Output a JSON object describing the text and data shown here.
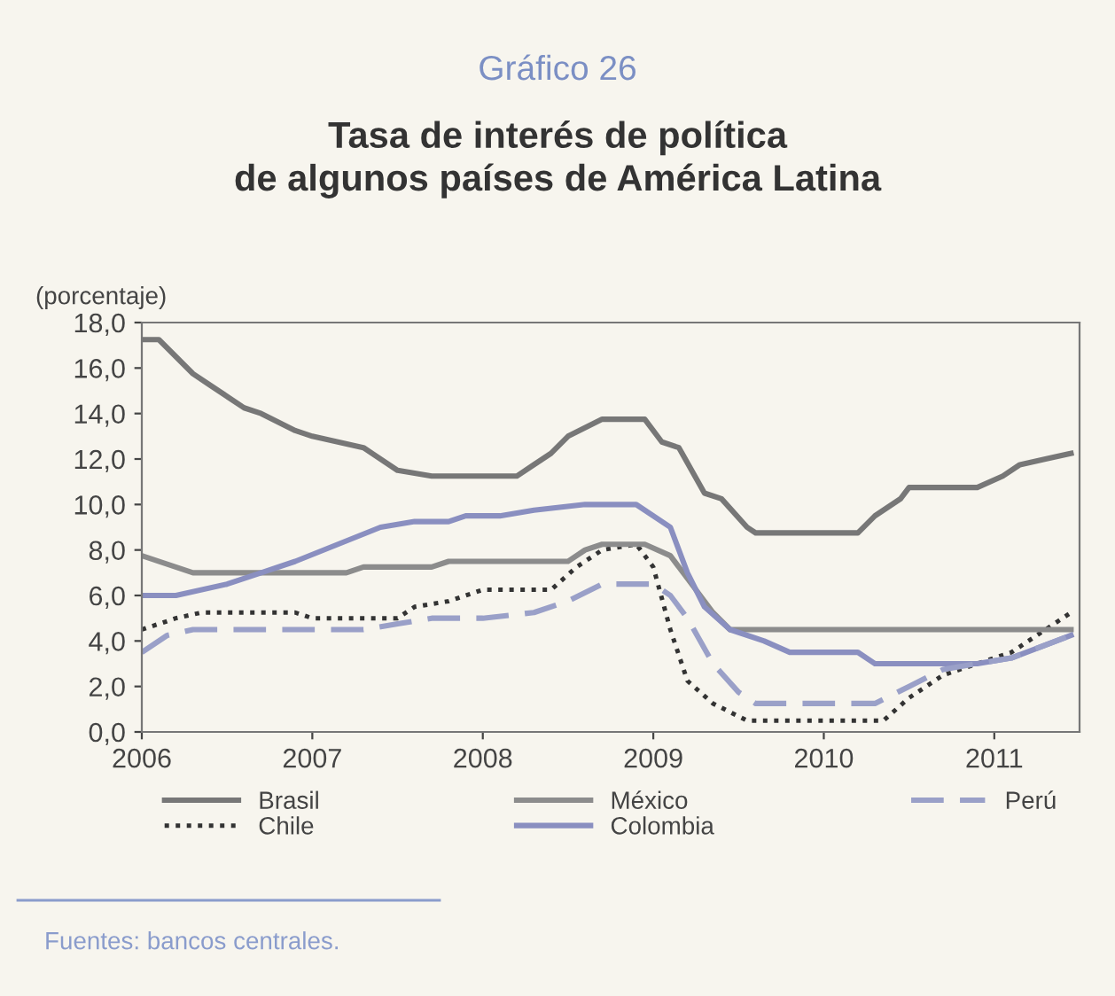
{
  "chart_data": {
    "type": "line",
    "title": "Gráfico 26",
    "subtitle": "Tasa de interés de política\nde algunos países de América Latina",
    "ylabel": "(porcentaje)",
    "annotations": [
      "Fuentes: bancos centrales."
    ],
    "xlim": [
      2006,
      2011.5
    ],
    "xticks": [
      2006,
      2007,
      2008,
      2009,
      2010,
      2011
    ],
    "ylim": [
      0,
      18
    ],
    "yticks": [
      {
        "value": 0,
        "label": "0,0"
      },
      {
        "value": 2,
        "label": "2,0"
      },
      {
        "value": 4,
        "label": "4,0"
      },
      {
        "value": 6,
        "label": "6,0"
      },
      {
        "value": 8,
        "label": "8,0"
      },
      {
        "value": 10,
        "label": "10,0"
      },
      {
        "value": 12,
        "label": "12,0"
      },
      {
        "value": 14,
        "label": "14,0"
      },
      {
        "value": 16,
        "label": "16,0"
      },
      {
        "value": 18,
        "label": "18,0"
      }
    ],
    "grid": false,
    "legend": "bottom",
    "marker": "none",
    "series": [
      {
        "name": "Brasil",
        "color": "#777777",
        "line_style": "solid",
        "x": [
          2006,
          2006.1,
          2006.3,
          2006.4,
          2006.6,
          2006.7,
          2006.9,
          2007.0,
          2007.3,
          2007.5,
          2007.7,
          2008.2,
          2008.3,
          2008.4,
          2008.5,
          2008.7,
          2008.95,
          2009.05,
          2009.15,
          2009.3,
          2009.4,
          2009.55,
          2009.6,
          2010.2,
          2010.3,
          2010.45,
          2010.5,
          2010.9,
          2011.05,
          2011.15,
          2011.3,
          2011.45
        ],
        "values": [
          17.25,
          17.25,
          15.75,
          15.25,
          14.25,
          14.0,
          13.25,
          13.0,
          12.5,
          11.5,
          11.25,
          11.25,
          11.75,
          12.25,
          13.0,
          13.75,
          13.75,
          12.75,
          12.5,
          10.5,
          10.25,
          9.0,
          8.75,
          8.75,
          9.5,
          10.25,
          10.75,
          10.75,
          11.25,
          11.75,
          12.0,
          12.25
        ]
      },
      {
        "name": "Chile",
        "color": "#333333",
        "line_style": "dotted",
        "x": [
          2006,
          2006.2,
          2006.35,
          2006.9,
          2007.0,
          2007.5,
          2007.6,
          2007.8,
          2008.0,
          2008.4,
          2008.55,
          2008.7,
          2008.9,
          2009.0,
          2009.1,
          2009.2,
          2009.35,
          2009.55,
          2010.35,
          2010.5,
          2010.7,
          2010.9,
          2011.1,
          2011.3,
          2011.45
        ],
        "values": [
          4.5,
          5.0,
          5.25,
          5.25,
          5.0,
          5.0,
          5.5,
          5.75,
          6.25,
          6.25,
          7.25,
          8.0,
          8.25,
          7.25,
          4.5,
          2.25,
          1.25,
          0.5,
          0.5,
          1.5,
          2.5,
          3.0,
          3.5,
          4.5,
          5.25
        ]
      },
      {
        "name": "México",
        "color": "#8c8c8c",
        "line_style": "solid",
        "x": [
          2006,
          2006.3,
          2007.2,
          2007.3,
          2007.7,
          2007.8,
          2008.5,
          2008.6,
          2008.7,
          2008.95,
          2009.1,
          2009.2,
          2009.35,
          2009.45,
          2011.45
        ],
        "values": [
          7.75,
          7.0,
          7.0,
          7.25,
          7.25,
          7.5,
          7.5,
          8.0,
          8.25,
          8.25,
          7.75,
          6.75,
          5.25,
          4.5,
          4.5
        ]
      },
      {
        "name": "Colombia",
        "color": "#8a8fc0",
        "line_style": "solid",
        "x": [
          2006,
          2006.2,
          2006.5,
          2006.7,
          2006.9,
          2007.4,
          2007.6,
          2007.8,
          2007.9,
          2008.1,
          2008.3,
          2008.6,
          2008.9,
          2009.1,
          2009.2,
          2009.3,
          2009.45,
          2009.65,
          2009.8,
          2010.2,
          2010.3,
          2010.9,
          2011.1,
          2011.45
        ],
        "values": [
          6.0,
          6.0,
          6.5,
          7.0,
          7.5,
          9.0,
          9.25,
          9.25,
          9.5,
          9.5,
          9.75,
          10.0,
          10.0,
          9.0,
          7.0,
          5.5,
          4.5,
          4.0,
          3.5,
          3.5,
          3.0,
          3.0,
          3.25,
          4.25
        ]
      },
      {
        "name": "Perú",
        "color": "#9aa0c8",
        "line_style": "dashed",
        "x": [
          2006,
          2006.15,
          2006.3,
          2007.3,
          2007.5,
          2007.7,
          2008.0,
          2008.3,
          2008.5,
          2008.7,
          2009.0,
          2009.1,
          2009.2,
          2009.35,
          2009.5,
          2009.6,
          2010.3,
          2010.5,
          2010.7,
          2010.9,
          2011.1,
          2011.45
        ],
        "values": [
          3.5,
          4.25,
          4.5,
          4.5,
          4.75,
          5.0,
          5.0,
          5.25,
          5.75,
          6.5,
          6.5,
          6.0,
          5.0,
          3.0,
          1.75,
          1.25,
          1.25,
          2.0,
          2.75,
          3.0,
          3.25,
          4.25
        ]
      }
    ]
  }
}
